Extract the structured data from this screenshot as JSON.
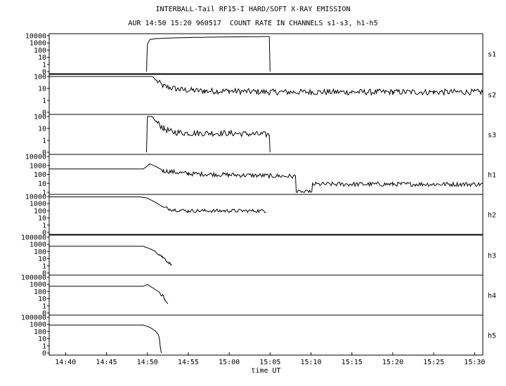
{
  "header": {
    "title": "INTERBALL-Tail RF15-I HARD/SOFT X-RAY EMISSION",
    "subtitle": "AUR 14:50 15:20 960517  COUNT RATE IN CHANNELS s1-s3, h1-h5"
  },
  "chart_data": {
    "type": "line",
    "xlabel": "time UT",
    "xlim": [
      "14:38",
      "15:31"
    ],
    "x_ticks": [
      "14:40",
      "14:45",
      "14:50",
      "14:55",
      "15:00",
      "15:05",
      "15:10",
      "15:15",
      "15:20",
      "15:25",
      "15:30"
    ],
    "grid": false,
    "y_scale": "log",
    "panels": [
      {
        "name": "s1",
        "y_ticks": [
          "10000",
          "1000",
          "100",
          "10",
          "1",
          "0"
        ],
        "series": [
          {
            "name": "s1",
            "points": [
              [
                "14:49.9",
                0
              ],
              [
                "14:50.0",
                600
              ],
              [
                "14:50.3",
                3000
              ],
              [
                "14:51",
                4000
              ],
              [
                "14:53",
                5000
              ],
              [
                "14:56",
                6000
              ],
              [
                "15:00",
                7000
              ],
              [
                "15:03",
                7500
              ],
              [
                "15:04.9",
                8000
              ],
              [
                "15:05.0",
                0
              ]
            ]
          }
        ]
      },
      {
        "name": "s2",
        "y_ticks": [
          "100",
          "10",
          "1",
          "0"
        ],
        "series": [
          {
            "name": "s2",
            "points": [
              [
                "14:38",
                300
              ],
              [
                "14:49.8",
                300
              ],
              [
                "14:50.5",
                150
              ],
              [
                "14:51",
                50
              ],
              [
                "14:52",
                15
              ],
              [
                "14:54",
                8
              ],
              [
                "14:57",
                6
              ],
              [
                "15:00",
                6
              ],
              [
                "15:05",
                5
              ],
              [
                "15:10",
                5
              ],
              [
                "15:15",
                5
              ],
              [
                "15:20",
                5
              ],
              [
                "15:25",
                5
              ],
              [
                "15:30",
                5
              ],
              [
                "15:31",
                5
              ]
            ]
          }
        ]
      },
      {
        "name": "s3",
        "y_ticks": [
          "100",
          "10",
          "1",
          "0"
        ],
        "series": [
          {
            "name": "s3",
            "points": [
              [
                "14:49.9",
                0
              ],
              [
                "14:50.0",
                250
              ],
              [
                "14:50.5",
                120
              ],
              [
                "14:51",
                40
              ],
              [
                "14:52",
                10
              ],
              [
                "14:53",
                5
              ],
              [
                "14:55",
                4
              ],
              [
                "15:00",
                4
              ],
              [
                "15:04.9",
                3
              ],
              [
                "15:05.0",
                0
              ]
            ]
          }
        ]
      },
      {
        "name": "h1",
        "y_ticks": [
          "10000",
          "1000",
          "100",
          "10",
          "1"
        ],
        "series": [
          {
            "name": "h1",
            "points": [
              [
                "14:38",
                400
              ],
              [
                "14:49.5",
                400
              ],
              [
                "14:50.3",
                1500
              ],
              [
                "14:51",
                800
              ],
              [
                "14:52",
                250
              ],
              [
                "14:55",
                120
              ],
              [
                "15:00",
                90
              ],
              [
                "15:05",
                70
              ],
              [
                "15:08.1",
                60
              ],
              [
                "15:08.2",
                1
              ],
              [
                "15:10.1",
                1
              ],
              [
                "15:10.2",
                8
              ],
              [
                "15:15",
                8
              ],
              [
                "15:20",
                8
              ],
              [
                "15:25",
                8
              ],
              [
                "15:31",
                8
              ]
            ]
          }
        ]
      },
      {
        "name": "h2",
        "y_ticks": [
          "10000",
          "1000",
          "100",
          "10",
          "1",
          "0"
        ],
        "series": [
          {
            "name": "h2",
            "points": [
              [
                "14:38",
                9000
              ],
              [
                "14:49",
                9000
              ],
              [
                "14:50",
                6000
              ],
              [
                "14:51",
                1500
              ],
              [
                "14:52",
                300
              ],
              [
                "14:53",
                150
              ],
              [
                "14:55",
                100
              ],
              [
                "15:00",
                100
              ],
              [
                "15:04.5",
                100
              ]
            ]
          }
        ]
      },
      {
        "name": "h3",
        "y_ticks": [
          "100000",
          "1000",
          "100",
          "10",
          "1",
          "0"
        ],
        "series": [
          {
            "name": "h3",
            "points": [
              [
                "14:38",
                3000
              ],
              [
                "14:49.5",
                3000
              ],
              [
                "14:50.3",
                1200
              ],
              [
                "14:51",
                400
              ],
              [
                "14:51.8",
                60
              ],
              [
                "14:52.5",
                8
              ],
              [
                "14:53",
                2
              ]
            ]
          }
        ]
      },
      {
        "name": "h4",
        "y_ticks": [
          "100000",
          "1000",
          "100",
          "10",
          "1",
          "0"
        ],
        "series": [
          {
            "name": "h4",
            "points": [
              [
                "14:38",
                3000
              ],
              [
                "14:49.5",
                3000
              ],
              [
                "14:50",
                6000
              ],
              [
                "14:50.7",
                1500
              ],
              [
                "14:51.5",
                300
              ],
              [
                "14:52",
                50
              ],
              [
                "14:52.2",
                8
              ],
              [
                "14:52.5",
                2
              ]
            ]
          }
        ]
      },
      {
        "name": "h5",
        "y_ticks": [
          "100000",
          "1000",
          "100",
          "10",
          "1",
          "0"
        ],
        "series": [
          {
            "name": "h5",
            "points": [
              [
                "14:38",
                5000
              ],
              [
                "14:49.5",
                5000
              ],
              [
                "14:50.3",
                2000
              ],
              [
                "14:51",
                500
              ],
              [
                "14:51.4",
                50
              ],
              [
                "14:51.6",
                1
              ],
              [
                "14:51.7",
                0
              ]
            ]
          }
        ]
      }
    ]
  }
}
